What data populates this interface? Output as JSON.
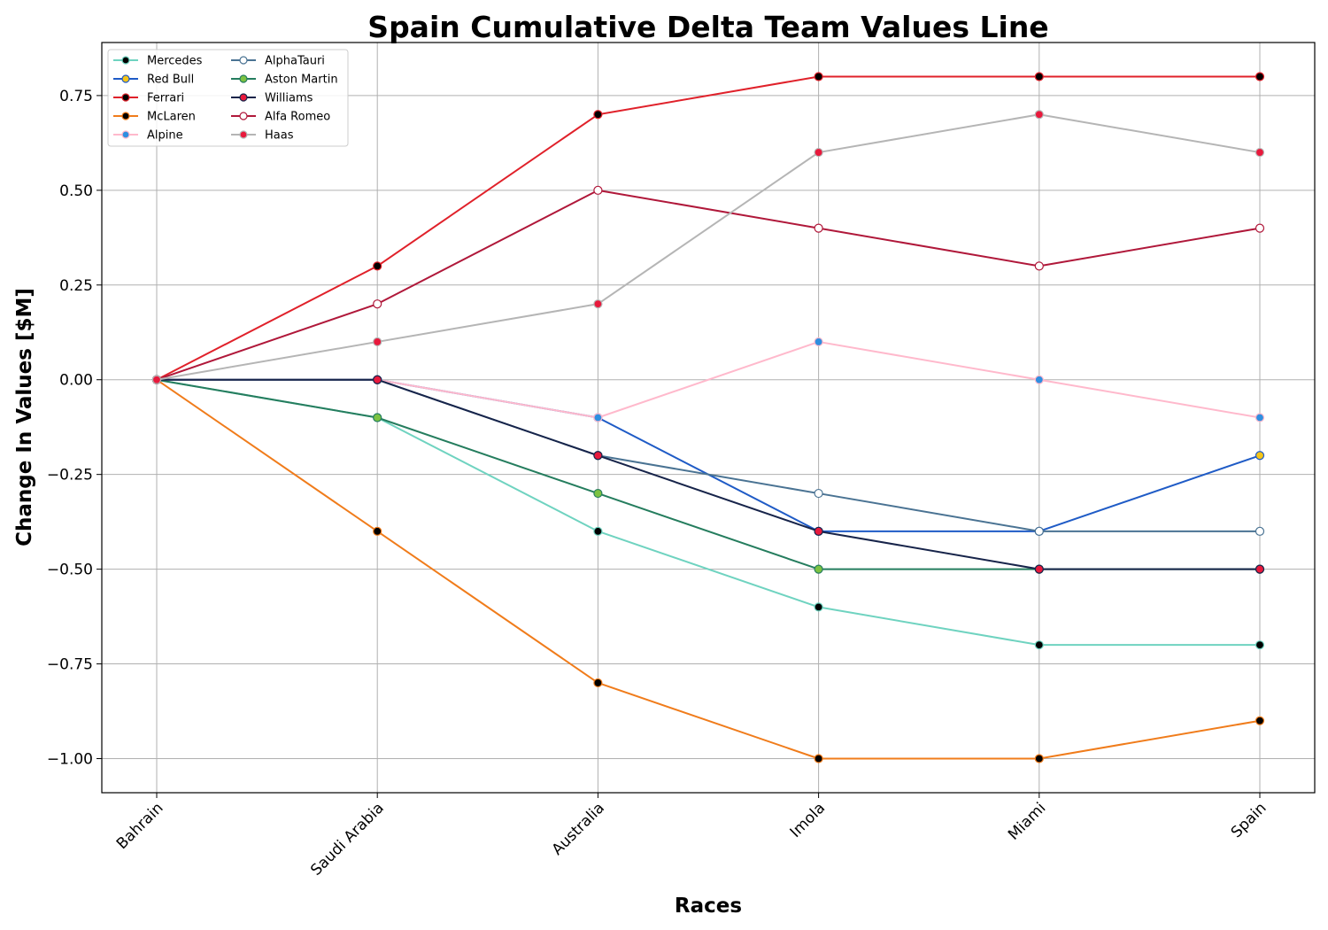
{
  "chart_data": {
    "type": "line",
    "title": "Spain Cumulative Delta Team Values Line",
    "xlabel": "Races",
    "ylabel": "Change In Values [$M]",
    "categories": [
      "Bahrain",
      "Saudi Arabia",
      "Australia",
      "Imola",
      "Miami",
      "Spain"
    ],
    "ylim": [
      -1.09,
      0.89
    ],
    "yticks": [
      -1.0,
      -0.75,
      -0.5,
      -0.25,
      0.0,
      0.25,
      0.5,
      0.75
    ],
    "ytick_labels": [
      "−1.00",
      "−0.75",
      "−0.50",
      "−0.25",
      "0.00",
      "0.25",
      "0.50",
      "0.75"
    ],
    "grid": true,
    "legend_position": "top-left",
    "series": [
      {
        "name": "Mercedes",
        "values": [
          0,
          -0.1,
          -0.4,
          -0.6,
          -0.7,
          -0.7
        ],
        "color": "#6fd3c0",
        "marker_fill": "#000000",
        "marker_edge": "#6fd3c0"
      },
      {
        "name": "Red Bull",
        "values": [
          0,
          0,
          -0.1,
          -0.4,
          -0.4,
          -0.2
        ],
        "color": "#1f5bc6",
        "marker_fill": "#f5c518",
        "marker_edge": "#1f5bc6"
      },
      {
        "name": "Ferrari",
        "values": [
          0,
          0.3,
          0.7,
          0.8,
          0.8,
          0.8
        ],
        "color": "#e0212a",
        "marker_fill": "#000000",
        "marker_edge": "#e0212a"
      },
      {
        "name": "McLaren",
        "values": [
          0,
          -0.4,
          -0.8,
          -1.0,
          -1.0,
          -0.9
        ],
        "color": "#f07c1b",
        "marker_fill": "#000000",
        "marker_edge": "#f07c1b"
      },
      {
        "name": "Alpine",
        "values": [
          0,
          0,
          -0.1,
          0.1,
          0,
          -0.1
        ],
        "color": "#ffb9cc",
        "marker_fill": "#2f8fe0",
        "marker_edge": "#ffb9cc"
      },
      {
        "name": "AlphaTauri",
        "values": [
          0,
          0,
          -0.2,
          -0.3,
          -0.4,
          -0.4
        ],
        "color": "#4a7393",
        "marker_fill": "#ffffff",
        "marker_edge": "#4a7393"
      },
      {
        "name": "Aston Martin",
        "values": [
          0,
          -0.1,
          -0.3,
          -0.5,
          -0.5,
          -0.5
        ],
        "color": "#257d5e",
        "marker_fill": "#7cc242",
        "marker_edge": "#257d5e"
      },
      {
        "name": "Williams",
        "values": [
          0,
          0,
          -0.2,
          -0.4,
          -0.5,
          -0.5
        ],
        "color": "#17244a",
        "marker_fill": "#e8193c",
        "marker_edge": "#17244a"
      },
      {
        "name": "Alfa Romeo",
        "values": [
          0,
          0.2,
          0.5,
          0.4,
          0.3,
          0.4
        ],
        "color": "#b0183a",
        "marker_fill": "#ffffff",
        "marker_edge": "#b0183a"
      },
      {
        "name": "Haas",
        "values": [
          0,
          0.1,
          0.2,
          0.6,
          0.7,
          0.6
        ],
        "color": "#b5b5b5",
        "marker_fill": "#e8193c",
        "marker_edge": "#b5b5b5"
      }
    ]
  }
}
